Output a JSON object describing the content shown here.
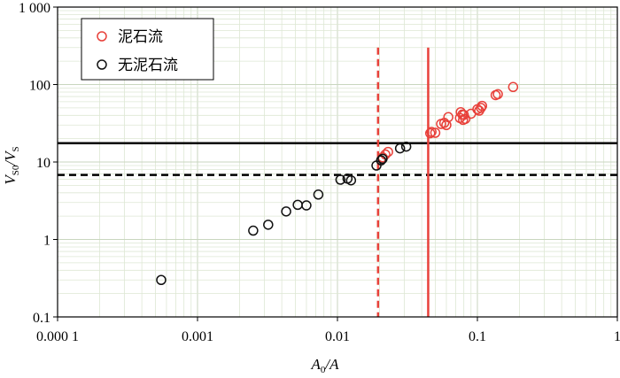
{
  "chart_data": {
    "type": "scatter",
    "xscale": "log",
    "yscale": "log",
    "xlim": [
      0.0001,
      1
    ],
    "ylim": [
      0.1,
      1000
    ],
    "grid": true,
    "legend_position": "top-left",
    "x_ticks": [
      "0.000 1",
      "0.001",
      "0.01",
      "0.1",
      "1"
    ],
    "y_ticks": [
      "0.1",
      "1",
      "10",
      "100",
      "1 000"
    ],
    "xlabel": {
      "main": "A",
      "sub": "0",
      "tail": "/A"
    },
    "ylabel": {
      "main": "V",
      "sub": "S0",
      "sep": "/",
      "main2": "V",
      "sub2": "S"
    },
    "series": [
      {
        "name": "泥石流",
        "color": "#e8413a",
        "points": [
          [
            0.021,
            11.5
          ],
          [
            0.022,
            12.5
          ],
          [
            0.023,
            13.5
          ],
          [
            0.046,
            23.5
          ],
          [
            0.047,
            24.5
          ],
          [
            0.05,
            23.8
          ],
          [
            0.055,
            31.0
          ],
          [
            0.058,
            32.0
          ],
          [
            0.06,
            30.0
          ],
          [
            0.062,
            38.0
          ],
          [
            0.075,
            37.0
          ],
          [
            0.076,
            44.0
          ],
          [
            0.078,
            41.0
          ],
          [
            0.079,
            35.0
          ],
          [
            0.08,
            40.5
          ],
          [
            0.082,
            36.0
          ],
          [
            0.09,
            42.0
          ],
          [
            0.1,
            48.0
          ],
          [
            0.103,
            46.0
          ],
          [
            0.106,
            50.0
          ],
          [
            0.108,
            53.0
          ],
          [
            0.135,
            73.0
          ],
          [
            0.14,
            75.0
          ],
          [
            0.18,
            93.0
          ]
        ]
      },
      {
        "name": "无泥石流",
        "color": "#111111",
        "points": [
          [
            0.00055,
            0.3
          ],
          [
            0.0025,
            1.3
          ],
          [
            0.0032,
            1.55
          ],
          [
            0.0043,
            2.3
          ],
          [
            0.0052,
            2.8
          ],
          [
            0.006,
            2.75
          ],
          [
            0.0073,
            3.8
          ],
          [
            0.0105,
            5.9
          ],
          [
            0.0118,
            6.1
          ],
          [
            0.0125,
            5.8
          ],
          [
            0.019,
            9.0
          ],
          [
            0.0205,
            10.5
          ],
          [
            0.021,
            11.0
          ],
          [
            0.028,
            15.0
          ],
          [
            0.031,
            15.8
          ]
        ]
      }
    ],
    "reference_lines": [
      {
        "orientation": "horizontal",
        "value": 17.5,
        "color": "#000000",
        "style": "solid"
      },
      {
        "orientation": "horizontal",
        "value": 6.8,
        "color": "#000000",
        "style": "dashed"
      },
      {
        "orientation": "vertical",
        "value": 0.0195,
        "color": "#e8413a",
        "style": "dashed",
        "y_top": 300
      },
      {
        "orientation": "vertical",
        "value": 0.0445,
        "color": "#e8413a",
        "style": "solid",
        "y_top": 300
      }
    ]
  }
}
